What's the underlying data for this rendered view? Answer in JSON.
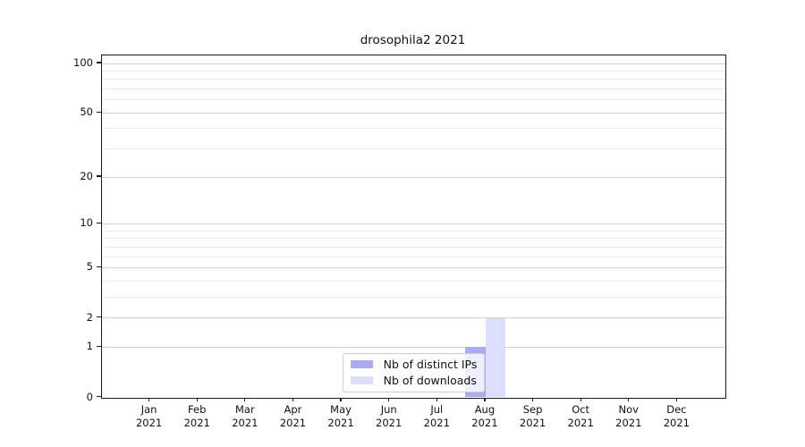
{
  "chart_data": {
    "type": "bar",
    "title": "drosophila2 2021",
    "x_tick_months": [
      "Jan",
      "Feb",
      "Mar",
      "Apr",
      "May",
      "Jun",
      "Jul",
      "Aug",
      "Sep",
      "Oct",
      "Nov",
      "Dec"
    ],
    "x_tick_year": "2021",
    "y_scale": "log1p",
    "ylim": [
      0,
      113
    ],
    "y_major_ticks": [
      0,
      1,
      2,
      5,
      10,
      20,
      50,
      100
    ],
    "y_minor_gridlines": [
      3,
      4,
      6,
      7,
      8,
      9,
      30,
      40,
      60,
      70,
      80,
      90
    ],
    "grid": "horizontal",
    "legend_position": "lower-center",
    "series": [
      {
        "name": "Nb of distinct IPs",
        "color": "#aaaaee",
        "values": [
          0,
          0,
          0,
          0,
          0,
          0,
          0,
          1,
          0,
          0,
          0,
          0
        ]
      },
      {
        "name": "Nb of downloads",
        "color": "#ddddff",
        "values": [
          0,
          0,
          0,
          0,
          0,
          0,
          0,
          2,
          0,
          0,
          0,
          0
        ]
      }
    ],
    "colors": {
      "background": "#ffffff",
      "frame": "#1a1a1a",
      "grid_major": "#d0d0d0",
      "grid_minor": "#eaeaea",
      "legend_border": "#cccccc",
      "text": "#111111"
    }
  }
}
